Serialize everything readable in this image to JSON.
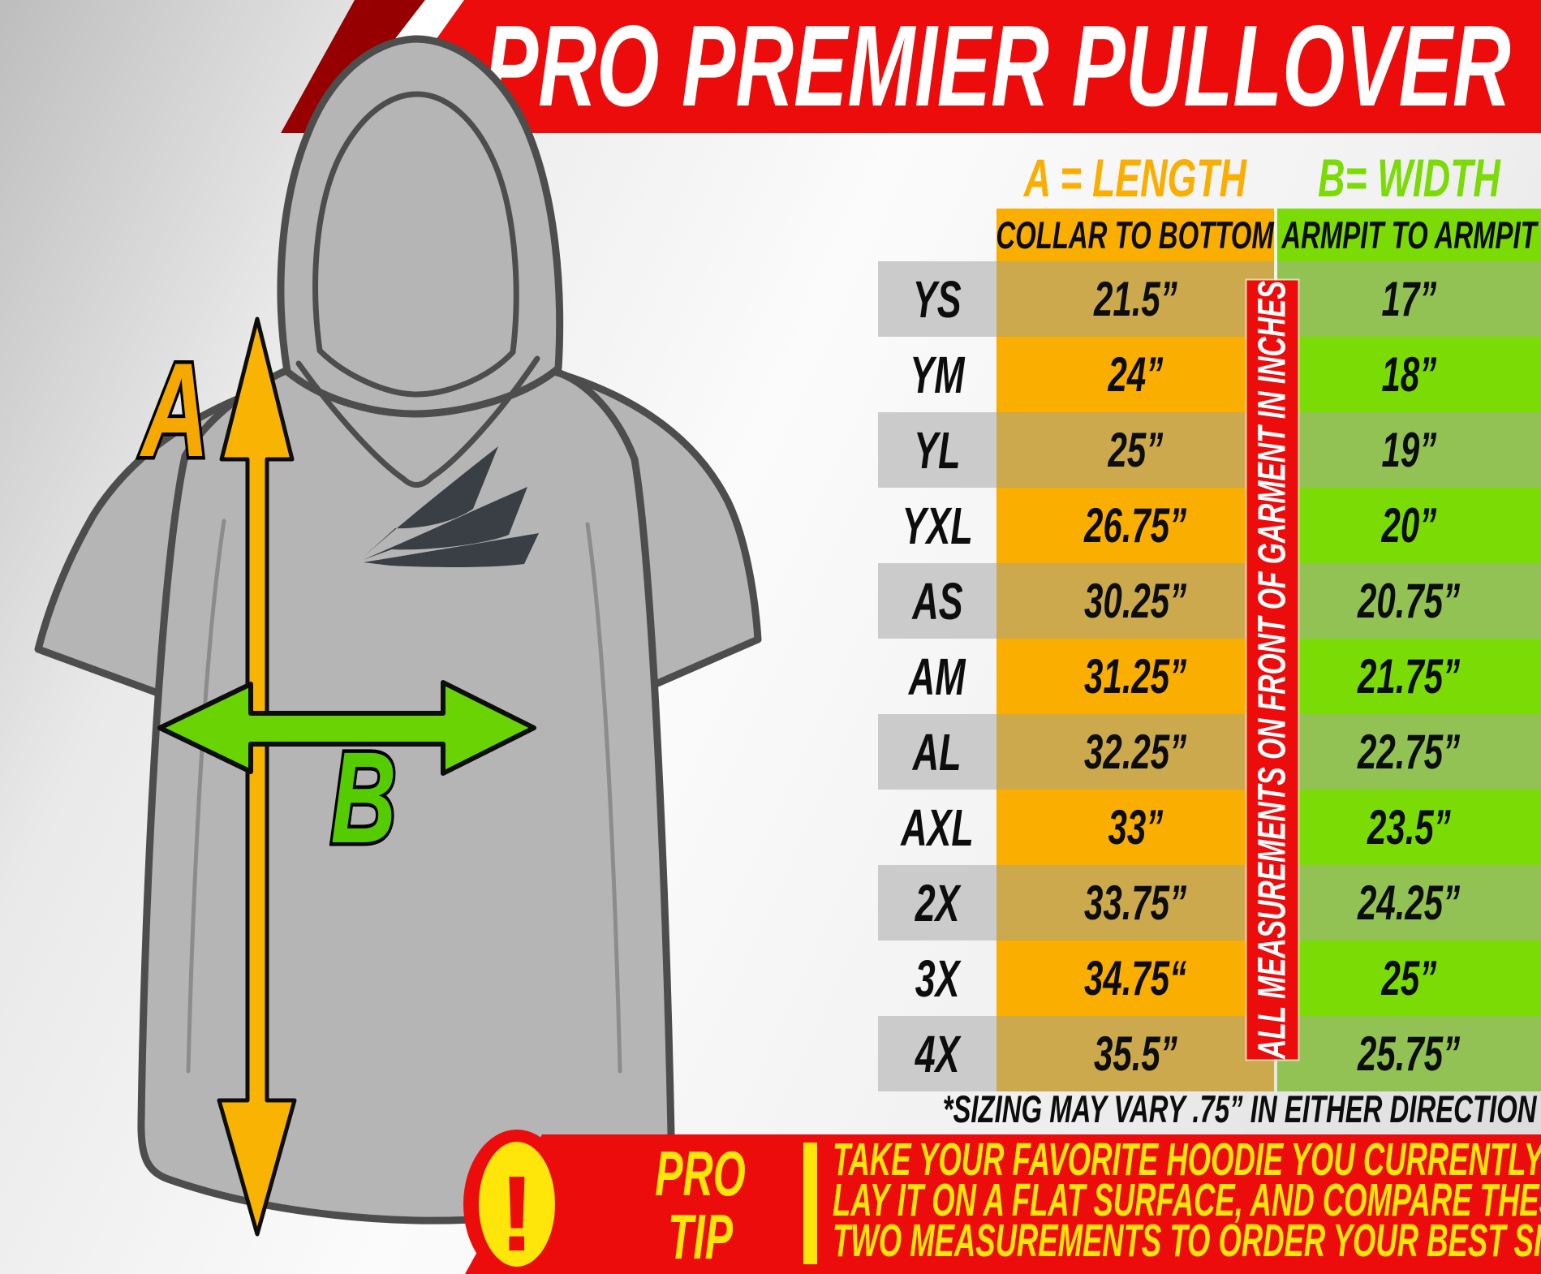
{
  "title": "PRO PREMIER PULLOVER",
  "legend": {
    "length": "A = LENGTH",
    "width": "B= WIDTH"
  },
  "table": {
    "headers": {
      "length": "COLLAR TO BOTTOM",
      "width": "ARMPIT TO ARMPIT"
    },
    "rows": [
      {
        "size": "YS",
        "length": "21.5”",
        "width": "17”"
      },
      {
        "size": "YM",
        "length": "24”",
        "width": "18”"
      },
      {
        "size": "YL",
        "length": "25”",
        "width": "19”"
      },
      {
        "size": "YXL",
        "length": "26.75”",
        "width": "20”"
      },
      {
        "size": "AS",
        "length": "30.25”",
        "width": "20.75”"
      },
      {
        "size": "AM",
        "length": "31.25”",
        "width": "21.75”"
      },
      {
        "size": "AL",
        "length": "32.25”",
        "width": "22.75”"
      },
      {
        "size": "AXL",
        "length": "33”",
        "width": "23.5”"
      },
      {
        "size": "2X",
        "length": "33.75”",
        "width": "24.25”"
      },
      {
        "size": "3X",
        "length": "34.75“",
        "width": "25”"
      },
      {
        "size": "4X",
        "length": "35.5”",
        "width": "25.75”"
      }
    ],
    "side_banner": "ALL MEASUREMENTS ON FRONT OF GARMENT IN INCHES",
    "footnote": "*SIZING MAY VARY .75” IN EITHER DIRECTION"
  },
  "diagram": {
    "a_label": "A",
    "b_label": "B"
  },
  "protip": {
    "icon": "!",
    "label_top": "PRO",
    "label_bottom": "TIP",
    "lines": [
      "TAKE YOUR FAVORITE HOODIE YOU CURRENTLY OWN,",
      "LAY IT ON A FLAT SURFACE, AND COMPARE THESE",
      "TWO MEASUREMENTS TO ORDER YOUR BEST SIZE."
    ]
  },
  "colors": {
    "red": "#ED0C0C",
    "dark_red": "#970000",
    "orange": "#F9AE00",
    "orange_muted": "#CBA94C",
    "green": "#7BDB04",
    "green_muted": "#92C254",
    "gray_cell": "#CBCBCB",
    "yellow": "#FFE60A"
  }
}
